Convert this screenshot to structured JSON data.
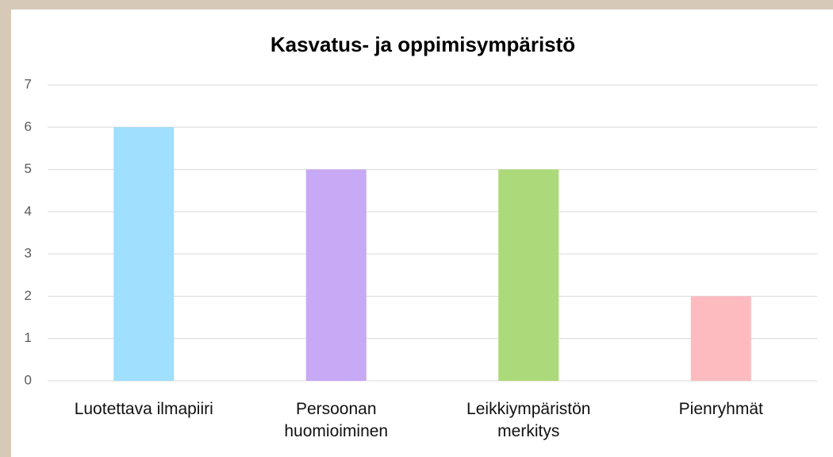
{
  "chart_data": {
    "type": "bar",
    "title": "Kasvatus- ja oppimisympäristö",
    "categories": [
      "Luotettava ilmapiiri",
      "Persoonan huomioiminen",
      "Leikkiympäristön merkitys",
      "Pienryhmät"
    ],
    "values": [
      6,
      5,
      5,
      2
    ],
    "colors": [
      "#a0dffd",
      "#c7a9f5",
      "#acd97a",
      "#fdbbc0"
    ],
    "ylim": [
      0,
      7
    ],
    "yticks": [
      0,
      1,
      2,
      3,
      4,
      5,
      6,
      7
    ],
    "grid": true
  }
}
